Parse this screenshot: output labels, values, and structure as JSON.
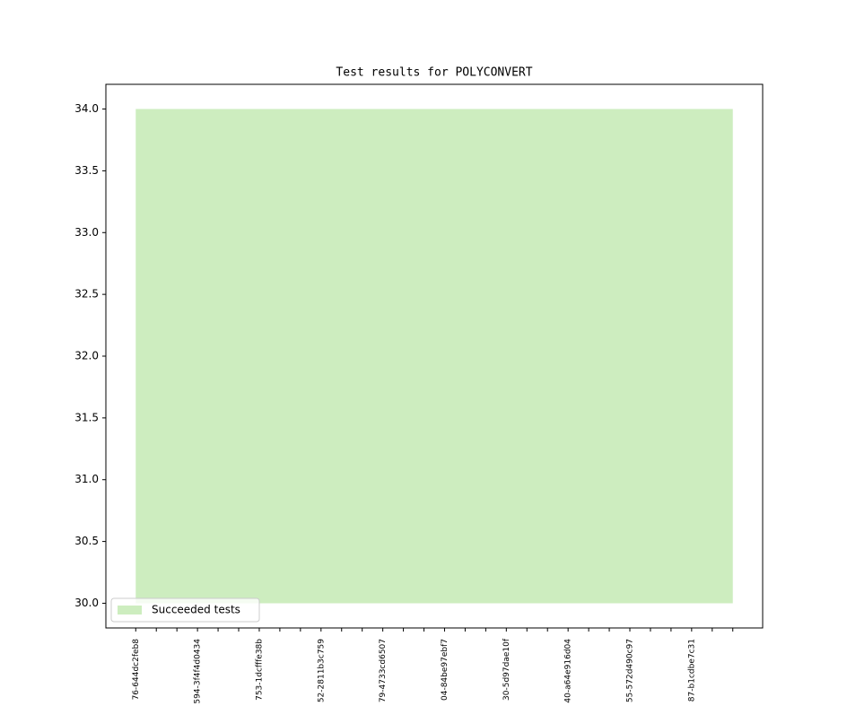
{
  "chart_data": {
    "type": "range-area",
    "title": "Test results for POLYCONVERT",
    "categories": [
      "76-644dc2feb8",
      null,
      null,
      "594-3f4f4d0434",
      null,
      null,
      "753-1dcfffe38b",
      null,
      null,
      "52-2811b3c759",
      null,
      null,
      "79-4733cd6507",
      null,
      null,
      "04-84be97ebf7",
      null,
      null,
      "30-5d97dae10f",
      null,
      null,
      "40-a64e916d04",
      null,
      null,
      "55-572d490c97",
      null,
      null,
      "87-b1cdbe7c31",
      null,
      null
    ],
    "series": [
      {
        "name": "Succeeded tests",
        "color": "#cdedbf",
        "values": [
          34,
          34,
          34,
          34,
          34,
          34,
          34,
          34,
          34,
          34,
          34,
          34,
          34,
          34,
          34,
          34,
          34,
          34,
          34,
          34,
          34,
          34,
          34,
          34,
          34,
          34,
          34,
          34,
          34,
          34
        ],
        "lower": [
          30,
          30,
          30,
          30,
          30,
          30,
          30,
          30,
          30,
          30,
          30,
          30,
          30,
          30,
          30,
          30,
          30,
          30,
          30,
          30,
          30,
          30,
          30,
          30,
          30,
          30,
          30,
          30,
          30,
          30
        ]
      }
    ],
    "ylim": [
      29.8,
      34.2
    ],
    "yticks": [
      {
        "value": 30,
        "label": "30.0"
      },
      {
        "value": 30.5,
        "label": "30.5"
      },
      {
        "value": 31,
        "label": "31.0"
      },
      {
        "value": 31.5,
        "label": "31.5"
      },
      {
        "value": 32,
        "label": "32.0"
      },
      {
        "value": 32.5,
        "label": "32.5"
      },
      {
        "value": 33,
        "label": "33.0"
      },
      {
        "value": 33.5,
        "label": "33.5"
      },
      {
        "value": 34,
        "label": "34.0"
      }
    ],
    "legend": "lower left"
  }
}
